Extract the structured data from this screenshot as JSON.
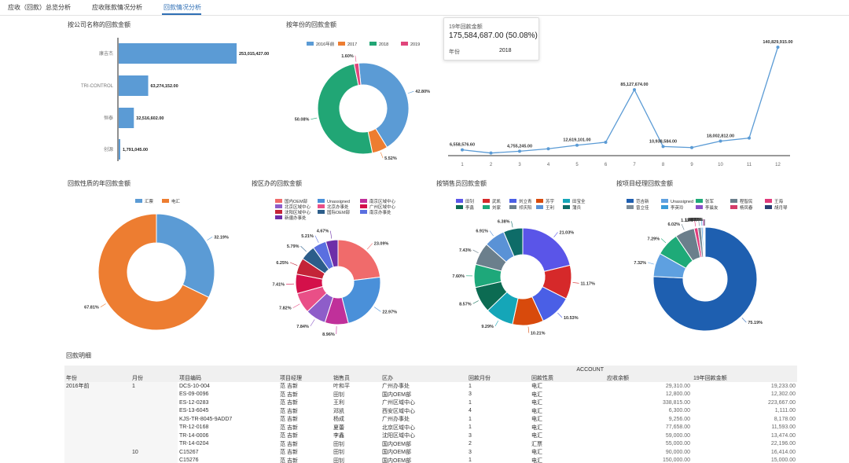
{
  "tabs": [
    {
      "label": "应收（回款）总览分析"
    },
    {
      "label": "应收账款情况分析"
    },
    {
      "label": "回款情况分析"
    }
  ],
  "charts": {
    "company": {
      "title": "按公司名称的回款金额",
      "categories": [
        "康吉杰",
        "TRI-CONTROL",
        "恒泰",
        "创源"
      ],
      "values": [
        253015427,
        63274152,
        32516602,
        1791045
      ],
      "labels": [
        "253,015,427.00",
        "63,274,152.00",
        "32,516,602.00",
        "1,791,045.00"
      ]
    },
    "year": {
      "title": "按年份的回款金额",
      "legend": [
        "2016年前",
        "2017",
        "2018",
        "2019"
      ],
      "values": [
        42.8,
        5.52,
        50.08,
        1.6
      ],
      "labels": [
        "42.80%",
        "5.52%",
        "50.08%",
        "1.60%"
      ]
    },
    "month": {
      "x": [
        1,
        2,
        3,
        4,
        5,
        6,
        7,
        8,
        9,
        10,
        11,
        12
      ],
      "values": [
        6558576.6,
        2400000,
        4755245,
        8000000,
        12619101,
        16500000,
        85127674,
        10938584,
        9500000,
        18002812,
        22000000,
        140829915
      ],
      "labels": [
        "6,558,576.60",
        "",
        "4,755,245.00",
        "",
        "12,619,101.00",
        "",
        "85,127,674.00",
        "10,938,584.00",
        "",
        "18,002,812.00",
        "",
        "140,829,915.00"
      ]
    },
    "nature": {
      "title": "回款性质的年回款金额",
      "legend": [
        "汇票",
        "电汇"
      ],
      "values": [
        32.19,
        67.81
      ],
      "labels": [
        "32.19%",
        "67.81%"
      ]
    },
    "region": {
      "title": "按区办的回款金额",
      "legend": [
        "国内OEM部",
        "Unassigned",
        "南京区域中心",
        "北京区域中心",
        "北京办事处",
        "广州区域中心",
        "沈阳区域中心",
        "国际OEM部",
        "南京办事处",
        "新疆办事处"
      ],
      "values": [
        23.09,
        22.97,
        8.96,
        7.84,
        7.82,
        7.41,
        6.25,
        5.79,
        5.21,
        4.67
      ],
      "labels": [
        "23.09%",
        "22.97%",
        "8.96%",
        "7.84%",
        "7.82%",
        "7.41%",
        "6.25%",
        "5.79%",
        "5.21%",
        "4.67%"
      ]
    },
    "sales": {
      "title": "按销售员回款金额",
      "legend": [
        "田钊",
        "武凯",
        "刘立青",
        "苏宇",
        "田宝全",
        "李鑫",
        "刘家",
        "祁庆阳",
        "王利",
        "蒲兵"
      ],
      "values": [
        21.03,
        11.17,
        10.53,
        10.21,
        9.29,
        8.57,
        7.6,
        7.43,
        6.91,
        6.38
      ],
      "labels": [
        "21.03%",
        "11.17%",
        "10.53%",
        "10.21%",
        "9.29%",
        "8.57%",
        "7.60%",
        "7.43%",
        "6.91%",
        "6.38%"
      ]
    },
    "manager": {
      "title": "按项目经理回款金额",
      "legend": [
        "范吉新",
        "Unassigned",
        "张军",
        "程智民",
        "王海",
        "曾立佳",
        "李英玲",
        "李晨友",
        "杨凤春",
        "胡月琴"
      ],
      "values": [
        75.19,
        7.32,
        7.29,
        6.02,
        1.11,
        1.08,
        0.47,
        0.31,
        0.21,
        0.2
      ],
      "labels": [
        "75.19%",
        "7.32%",
        "7.29%",
        "6.02%",
        "1.11%",
        "1.08%",
        "0.47%",
        "0.31%",
        "0.21%",
        "0.20%"
      ]
    }
  },
  "colors": {
    "blue": "#5b9bd5",
    "orange": "#ed7d31",
    "green": "#21a675",
    "pink": "#e0457b",
    "accent": "#2f6fb5"
  },
  "tooltip": {
    "title": "19年回款金额",
    "value": "175,584,687.00 (50.08%)",
    "label": "年份",
    "year": "2018"
  },
  "detail": {
    "title": "回款明细",
    "account_label": "ACCOUNT",
    "headers": [
      "年份",
      "月份",
      "项目编码",
      "项目经理",
      "销售员",
      "区办",
      "回款月份",
      "回款性质",
      "应收余额",
      "19年回款金额"
    ],
    "rows": [
      [
        "2016年前",
        "1",
        "DCS-10-004",
        "范 吉新",
        "叶和平",
        "广州办事处",
        "1",
        "电汇",
        "29,310.00",
        "19,233.00"
      ],
      [
        "",
        "",
        "ES-09-0096",
        "范 吉新",
        "田钊",
        "国内OEM部",
        "3",
        "电汇",
        "12,800.00",
        "12,302.00"
      ],
      [
        "",
        "",
        "ES-12-0283",
        "范 吉新",
        "王利",
        "广州区域中心",
        "1",
        "电汇",
        "338,815.00",
        "223,667.00"
      ],
      [
        "",
        "",
        "ES-13-6045",
        "范 吉新",
        "邓凯",
        "西安区域中心",
        "4",
        "电汇",
        "6,300.00",
        "1,111.00"
      ],
      [
        "",
        "",
        "KJS-TR-8045-9ADD7",
        "范 吉新",
        "杨成",
        "广州办事处",
        "1",
        "电汇",
        "9,256.00",
        "8,178.00"
      ],
      [
        "",
        "",
        "TR-12-0168",
        "范 吉新",
        "夏蕾",
        "北京区域中心",
        "1",
        "电汇",
        "77,658.00",
        "11,593.00"
      ],
      [
        "",
        "",
        "TR-14-0006",
        "范 吉新",
        "李鑫",
        "沈阳区域中心",
        "3",
        "电汇",
        "59,000.00",
        "13,474.00"
      ],
      [
        "",
        "",
        "TR-14-0204",
        "范 吉新",
        "田钊",
        "国内OEM部",
        "2",
        "汇票",
        "55,000.00",
        "22,196.00"
      ],
      [
        "",
        "10",
        "C15267",
        "范 吉新",
        "田钊",
        "国内OEM部",
        "3",
        "电汇",
        "90,000.00",
        "16,414.00"
      ],
      [
        "",
        "",
        "C15276",
        "范 吉新",
        "田钊",
        "国内OEM部",
        "1",
        "电汇",
        "150,000.00",
        "15,000.00"
      ]
    ]
  }
}
